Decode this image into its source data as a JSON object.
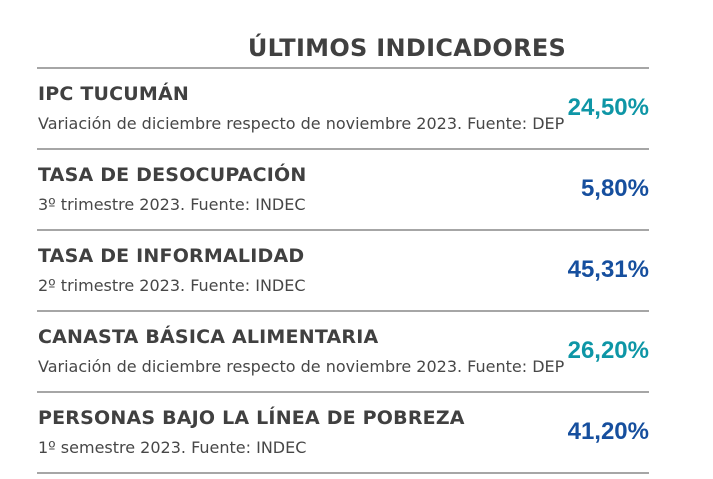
{
  "widget": {
    "title": "ÚLTIMOS INDICADORES"
  },
  "colors": {
    "teal_value": "#0e96a6",
    "blue_value": "#164f9e",
    "heading_text": "#404040",
    "divider": "#a6a6a6"
  },
  "indicators": [
    {
      "name": "IPC TUCUMÁN",
      "detail": "Variación de diciembre respecto de noviembre 2023. Fuente: DEP",
      "value": "24,50%",
      "value_color": "#0e96a6"
    },
    {
      "name": "TASA DE DESOCUPACIÓN",
      "detail": "3º trimestre 2023. Fuente: INDEC",
      "value": "5,80%",
      "value_color": "#164f9e"
    },
    {
      "name": "TASA DE INFORMALIDAD",
      "detail": "2º trimestre 2023. Fuente: INDEC",
      "value": "45,31%",
      "value_color": "#164f9e"
    },
    {
      "name": "CANASTA BÁSICA ALIMENTARIA",
      "detail": "Variación de diciembre respecto de noviembre 2023. Fuente: DEP",
      "value": "26,20%",
      "value_color": "#0e96a6"
    },
    {
      "name": "PERSONAS BAJO LA LÍNEA DE POBREZA",
      "detail": "1º semestre 2023. Fuente: INDEC",
      "value": "41,20%",
      "value_color": "#164f9e"
    }
  ]
}
